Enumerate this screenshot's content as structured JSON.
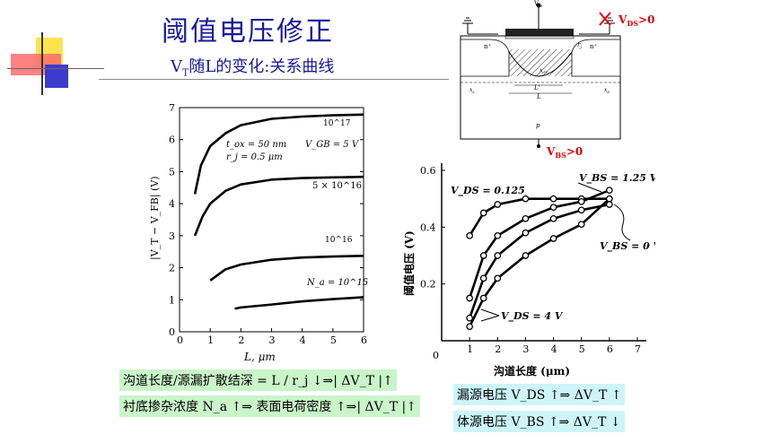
{
  "slide": {
    "title": "阈值电压修正",
    "subtitle_prefix": "V",
    "subtitle_sub": "T",
    "subtitle_rest": "随L的变化:关系曲线"
  },
  "device_diagram": {
    "labels": {
      "vg": "V",
      "vg_sub": "G",
      "vds_note": "V",
      "vds_sub": "DS",
      "vds_tail": ">0",
      "vbs_note": "V",
      "vbs_sub": "BS",
      "vbs_tail": ">0",
      "n_left": "n⁺",
      "n_right": "n⁺",
      "rj": "r",
      "rj_sub": "j",
      "xdt": "x",
      "xdt_sub": "dT",
      "lprime": "L'",
      "l": "L",
      "xs": "x",
      "xs_sub": "s",
      "xd": "x",
      "xd_sub": "d",
      "p": "p"
    },
    "colors": {
      "note": "#e00000"
    }
  },
  "chart_data": [
    {
      "type": "line",
      "title": "",
      "xlabel": "L, μm",
      "ylabel": "|V_T − V_FB| (V)",
      "xlim": [
        0,
        6
      ],
      "ylim": [
        0,
        7
      ],
      "x_ticks": [
        "0",
        "1",
        "2",
        "3",
        "4",
        "5",
        "6"
      ],
      "y_ticks": [
        "0",
        "1",
        "2",
        "3",
        "4",
        "5",
        "6",
        "7"
      ],
      "annotations": [
        "t_ox = 50 nm",
        "r_j = 0.5 μm",
        "V_GB = 5 V"
      ],
      "series": [
        {
          "name": "10^17",
          "x": [
            0.5,
            0.7,
            1.0,
            1.5,
            2,
            3,
            4,
            5,
            6
          ],
          "y": [
            4.3,
            5.2,
            5.8,
            6.2,
            6.45,
            6.65,
            6.72,
            6.76,
            6.78
          ]
        },
        {
          "name": "5 × 10^16",
          "x": [
            0.5,
            0.75,
            1.0,
            1.5,
            2,
            3,
            4,
            5,
            6
          ],
          "y": [
            3.0,
            3.6,
            4.0,
            4.4,
            4.6,
            4.75,
            4.8,
            4.82,
            4.84
          ]
        },
        {
          "name": "10^16",
          "x": [
            1.0,
            1.5,
            2,
            3,
            4,
            5,
            6
          ],
          "y": [
            1.6,
            1.95,
            2.1,
            2.25,
            2.32,
            2.35,
            2.37
          ]
        },
        {
          "name": "N_a = 10^15",
          "x": [
            1.8,
            2,
            3,
            4,
            5,
            6
          ],
          "y": [
            0.72,
            0.76,
            0.85,
            0.95,
            1.02,
            1.08
          ]
        }
      ]
    },
    {
      "type": "line",
      "title": "",
      "xlabel": "沟道长度 (μm)",
      "ylabel": "阈值电压 (V)",
      "xlim": [
        0,
        7
      ],
      "ylim": [
        0,
        0.6
      ],
      "x_ticks": [
        "0",
        "1",
        "2",
        "3",
        "4",
        "5",
        "6",
        "7"
      ],
      "y_ticks": [
        "0.2",
        "0.4",
        "0.6"
      ],
      "annotations": [
        "V_DS = 0.125",
        "V_BS = 1.25 V",
        "V_BS = 0 V",
        "V_DS = 4 V"
      ],
      "series": [
        {
          "name": "V_DS = 0.125",
          "x": [
            1,
            1.5,
            2,
            3,
            4,
            5,
            6
          ],
          "y": [
            0.37,
            0.45,
            0.48,
            0.5,
            0.5,
            0.5,
            0.5
          ]
        },
        {
          "name": "",
          "x": [
            1,
            1.5,
            2,
            3,
            4,
            5,
            6
          ],
          "y": [
            0.15,
            0.3,
            0.37,
            0.43,
            0.47,
            0.49,
            0.53
          ]
        },
        {
          "name": "",
          "x": [
            1,
            1.5,
            2,
            3,
            4,
            5,
            6
          ],
          "y": [
            0.08,
            0.22,
            0.3,
            0.38,
            0.43,
            0.46,
            0.48
          ]
        },
        {
          "name": "V_DS = 4 V",
          "x": [
            1,
            1.5,
            2,
            3,
            4,
            5,
            6
          ],
          "y": [
            0.05,
            0.15,
            0.22,
            0.3,
            0.36,
            0.41,
            0.5
          ]
        }
      ]
    }
  ],
  "notes": {
    "n1": "沟道长度/源漏扩散结深 = L / r_j ↓⇒| ΔV_T |↑",
    "n2": "衬底掺杂浓度 N_a ↑⇒ 表面电荷密度 ↑⇒| ΔV_T |↑",
    "n3": "漏源电压 V_DS ↑⇒ ΔV_T ↑",
    "n4": "体源电压 V_BS ↑⇒ ΔV_T ↓"
  }
}
